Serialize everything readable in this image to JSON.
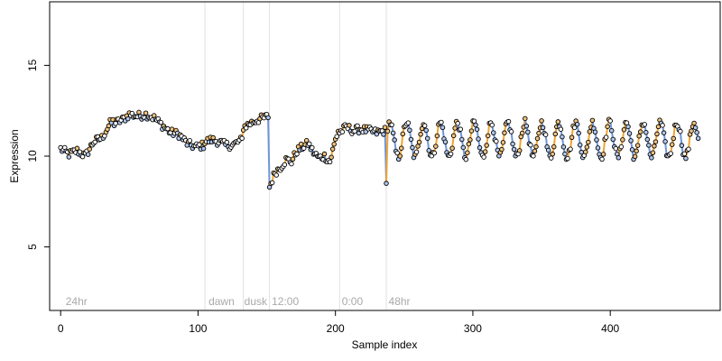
{
  "chart_data": {
    "type": "scatter",
    "xlabel": "Sample index",
    "ylabel": "Expression",
    "xlim": [
      -8,
      480
    ],
    "ylim": [
      1.5,
      18.5
    ],
    "xticks": [
      "0",
      "100",
      "200",
      "300",
      "400"
    ],
    "yticks": [
      "5",
      "10",
      "15"
    ],
    "grid": false,
    "dividers": [
      105,
      133,
      152,
      203,
      237
    ],
    "annotations": [
      {
        "text": "24hr",
        "x": 3
      },
      {
        "text": "dawn",
        "x": 107
      },
      {
        "text": "dusk",
        "x": 133
      },
      {
        "text": "12:00",
        "x": 153
      },
      {
        "text": "0:00",
        "x": 204
      },
      {
        "text": "48hr",
        "x": 238
      }
    ],
    "colors": {
      "points": "#000000",
      "point_fill_low": "#b0c8f0",
      "point_fill_high": "#f2c27a",
      "line_low": "#6f95d8",
      "line_high": "#f0a332",
      "line_base": "#b8b8b8",
      "divider": "#e0e0e0",
      "annotation": "#a9a9a9"
    },
    "series": [
      {
        "segments": [
          {
            "start": 0,
            "end": 38,
            "x": [
              0,
              6,
              12,
              18,
              24,
              30,
              36,
              38
            ],
            "y": [
              10.4,
              10.1,
              10.3,
              10.0,
              10.8,
              11.0,
              11.8,
              11.9
            ]
          },
          {
            "start": 39,
            "end": 104,
            "x": [
              39,
              45,
              50,
              56,
              62,
              68,
              74,
              80,
              86,
              92,
              98,
              104
            ],
            "y": [
              11.8,
              12.0,
              12.3,
              12.2,
              12.3,
              12.1,
              11.7,
              11.3,
              11.2,
              10.7,
              10.5,
              10.6
            ]
          },
          {
            "start": 105,
            "end": 132,
            "x": [
              105,
              110,
              115,
              120,
              125,
              132
            ],
            "y": [
              10.8,
              10.9,
              10.8,
              10.6,
              10.6,
              10.9
            ]
          },
          {
            "start": 133,
            "end": 151,
            "x": [
              133,
              138,
              143,
              148,
              151
            ],
            "y": [
              11.6,
              11.8,
              12.0,
              12.1,
              12.2
            ]
          },
          {
            "start": 152,
            "end": 202,
            "x": [
              152,
              156,
              160,
              164,
              168,
              172,
              176,
              180,
              184,
              188,
              192,
              196,
              200,
              202
            ],
            "y": [
              8.3,
              9.1,
              9.4,
              9.8,
              9.7,
              10.3,
              10.5,
              10.7,
              10.2,
              9.9,
              10.0,
              9.7,
              10.9,
              11.4
            ]
          },
          {
            "start": 203,
            "end": 236,
            "x": [
              203,
              208,
              213,
              218,
              224,
              230,
              236
            ],
            "y": [
              11.3,
              11.6,
              11.4,
              11.5,
              11.4,
              11.3,
              11.4
            ]
          }
        ],
        "wave": {
          "start": 237,
          "end": 464,
          "mean": 10.9,
          "amplitude": 0.95,
          "period": 12.3,
          "phase": 0.3,
          "jitter": 0.45
        }
      }
    ]
  }
}
